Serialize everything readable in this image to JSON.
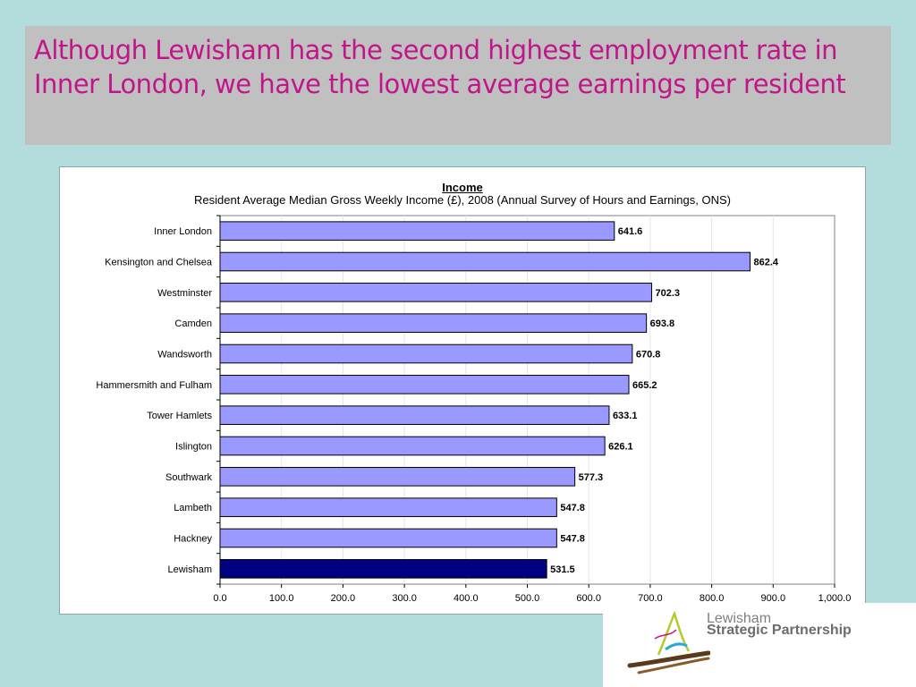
{
  "slide": {
    "title": "Although Lewisham has the second highest employment rate in Inner London, we have the lowest average earnings per resident"
  },
  "logo": {
    "line1": "Lewisham",
    "line2": "Strategic Partnership"
  },
  "chart_data": {
    "type": "bar",
    "orientation": "horizontal",
    "title": "Income",
    "subtitle": "Resident Average Median Gross Weekly Income (£), 2008 (Annual Survey of Hours and Earnings, ONS)",
    "categories": [
      "Inner London",
      "Kensington and Chelsea",
      "Westminster",
      "Camden",
      "Wandsworth",
      "Hammersmith and Fulham",
      "Tower Hamlets",
      "Islington",
      "Southwark",
      "Lambeth",
      "Hackney",
      "Lewisham"
    ],
    "values": [
      641.6,
      862.4,
      702.3,
      693.8,
      670.8,
      665.2,
      633.1,
      626.1,
      577.3,
      547.8,
      547.8,
      531.5
    ],
    "value_labels": [
      "641.6",
      "862.4",
      "702.3",
      "693.8",
      "670.8",
      "665.2",
      "633.1",
      "626.1",
      "577.3",
      "547.8",
      "547.8",
      "531.5"
    ],
    "xlim": [
      0,
      1000
    ],
    "x_ticks": [
      0,
      100,
      200,
      300,
      400,
      500,
      600,
      700,
      800,
      900,
      1000
    ],
    "x_tick_labels": [
      "0.0",
      "100.0",
      "200.0",
      "300.0",
      "400.0",
      "500.0",
      "600.0",
      "700.0",
      "800.0",
      "900.0",
      "1,000.0"
    ],
    "highlight": "Lewisham",
    "grid": true,
    "legend": "none",
    "colors": {
      "bar": "#9999ff",
      "highlight_bar": "#000080",
      "bar_border": "#000000"
    }
  }
}
